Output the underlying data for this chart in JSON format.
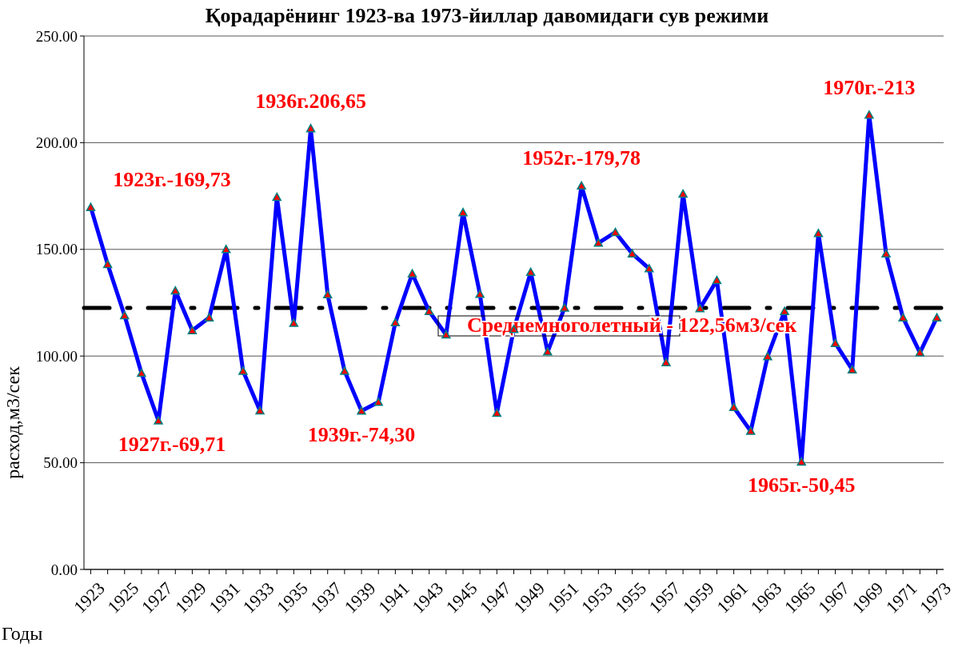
{
  "chart_data": {
    "type": "line",
    "title": "Қорадарёнинг 1923-ва 1973-йиллар давомидаги сув режими",
    "xlabel": "Годы",
    "ylabel": "расход,м3/сек",
    "categories": [
      "1923",
      null,
      "1925",
      null,
      "1927",
      null,
      "1929",
      null,
      "1931",
      null,
      "1933",
      null,
      "1935",
      null,
      "1937",
      null,
      "1939",
      null,
      "1941",
      null,
      "1943",
      null,
      "1945",
      null,
      "1947",
      null,
      "1949",
      null,
      "1951",
      null,
      "1953",
      null,
      "1955",
      null,
      "1957",
      null,
      "1959",
      null,
      "1961",
      null,
      "1963",
      null,
      "1965",
      null,
      "1967",
      null,
      "1969",
      null,
      "1971",
      null,
      "1973"
    ],
    "series": [
      {
        "color": "#0000ff",
        "values": [
          169.73,
          143,
          119,
          92,
          69.71,
          130.6,
          112,
          118,
          150,
          93,
          74.4,
          174.5,
          115.4,
          206.65,
          128.8,
          93,
          74.3,
          78.4,
          115.7,
          138.6,
          121,
          110,
          167.3,
          129,
          73.3,
          112.5,
          139.3,
          102,
          122.6,
          179.78,
          153,
          158,
          148,
          141,
          97,
          176,
          122.3,
          135.5,
          76,
          64.8,
          99.8,
          121,
          50.45,
          157.5,
          106,
          93.6,
          213,
          148,
          118,
          101.6,
          118
        ]
      }
    ],
    "ylim": [
      0,
      250
    ],
    "yticks": [
      {
        "value": 0,
        "label": "0.00"
      },
      {
        "value": 50,
        "label": "50.00"
      },
      {
        "value": 100,
        "label": "100.00"
      },
      {
        "value": 150,
        "label": "150.00"
      },
      {
        "value": 200,
        "label": "200.00"
      },
      {
        "value": 250,
        "label": "250.00"
      }
    ],
    "grid": "y",
    "marker": "triangle",
    "line_style": "solid",
    "ref_lines": [
      {
        "axis": "y",
        "value": 122.56,
        "label": "Среднемноголетный - 122,56м3/сек",
        "color": "#000000"
      }
    ],
    "annotations": [
      {
        "text": "1923г.-169,73",
        "x": "1923",
        "y": 169.73
      },
      {
        "text": "1927г.-69,71",
        "x": "1927",
        "y": 69.71
      },
      {
        "text": "1936г.206,65",
        "y": 206.65
      },
      {
        "text": "1939г.-74,30",
        "x": "1939",
        "y": 74.3
      },
      {
        "text": "1952г.-179,78",
        "y": 179.78
      },
      {
        "text": "1965г.-50,45",
        "x": "1965",
        "y": 50.45
      },
      {
        "text": "1970г.-213",
        "y": 213
      }
    ]
  }
}
